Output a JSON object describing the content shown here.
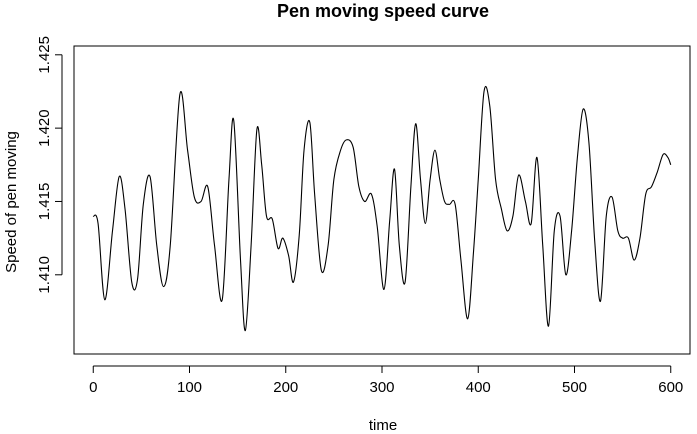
{
  "chart_data": {
    "type": "line",
    "title": "Pen moving speed curve",
    "xlabel": "time",
    "ylabel": "Speed of pen moving",
    "xlim": [
      -20,
      620
    ],
    "ylim": [
      1.4046,
      1.4256
    ],
    "x_ticks": [
      0,
      100,
      200,
      300,
      400,
      500,
      600
    ],
    "x_tick_labels": [
      "0",
      "100",
      "200",
      "300",
      "400",
      "500",
      "600"
    ],
    "y_ticks": [
      1.41,
      1.415,
      1.42,
      1.425
    ],
    "y_tick_labels": [
      "1.410",
      "1.415",
      "1.420",
      "1.425"
    ],
    "grid": false,
    "legend": "none",
    "line_color": "#000000",
    "series": [
      {
        "x": [
          0,
          5,
          12,
          20,
          27,
          33,
          40,
          46,
          52,
          59,
          66,
          73,
          80,
          90,
          98,
          105,
          112,
          119,
          126,
          134,
          141,
          146,
          153,
          158,
          164,
          170,
          175,
          180,
          186,
          192,
          197,
          203,
          208,
          214,
          219,
          225,
          230,
          237,
          244,
          250,
          257,
          263,
          270,
          276,
          282,
          289,
          295,
          302,
          308,
          313,
          318,
          324,
          330,
          335,
          340,
          345,
          350,
          355,
          360,
          365,
          370,
          376,
          382,
          389,
          395,
          400,
          406,
          412,
          418,
          424,
          430,
          436,
          442,
          449,
          455,
          461,
          467,
          473,
          479,
          485,
          491,
          497,
          503,
          509,
          515,
          521,
          527,
          533,
          539,
          545,
          550,
          556,
          562,
          568,
          574,
          580,
          586,
          592,
          597,
          600
        ],
        "y": [
          1.414,
          1.4135,
          1.4083,
          1.413,
          1.4167,
          1.4145,
          1.4095,
          1.4097,
          1.4148,
          1.4167,
          1.412,
          1.4092,
          1.412,
          1.4223,
          1.4185,
          1.4153,
          1.415,
          1.416,
          1.412,
          1.4083,
          1.4165,
          1.4205,
          1.411,
          1.4062,
          1.412,
          1.4199,
          1.4175,
          1.414,
          1.4138,
          1.4118,
          1.4125,
          1.4113,
          1.4095,
          1.4127,
          1.4185,
          1.4204,
          1.4155,
          1.4103,
          1.412,
          1.4165,
          1.4185,
          1.4192,
          1.4187,
          1.416,
          1.415,
          1.4155,
          1.4133,
          1.409,
          1.4137,
          1.4172,
          1.412,
          1.4095,
          1.416,
          1.4203,
          1.4165,
          1.4135,
          1.4165,
          1.4185,
          1.4165,
          1.415,
          1.4148,
          1.4148,
          1.411,
          1.407,
          1.4115,
          1.4165,
          1.4225,
          1.4215,
          1.4165,
          1.4145,
          1.413,
          1.414,
          1.4168,
          1.415,
          1.4135,
          1.418,
          1.412,
          1.4065,
          1.413,
          1.414,
          1.41,
          1.413,
          1.418,
          1.4213,
          1.419,
          1.4123,
          1.4082,
          1.414,
          1.4153,
          1.413,
          1.4125,
          1.4125,
          1.411,
          1.4125,
          1.4155,
          1.416,
          1.417,
          1.4182,
          1.418,
          1.4175
        ]
      }
    ]
  }
}
